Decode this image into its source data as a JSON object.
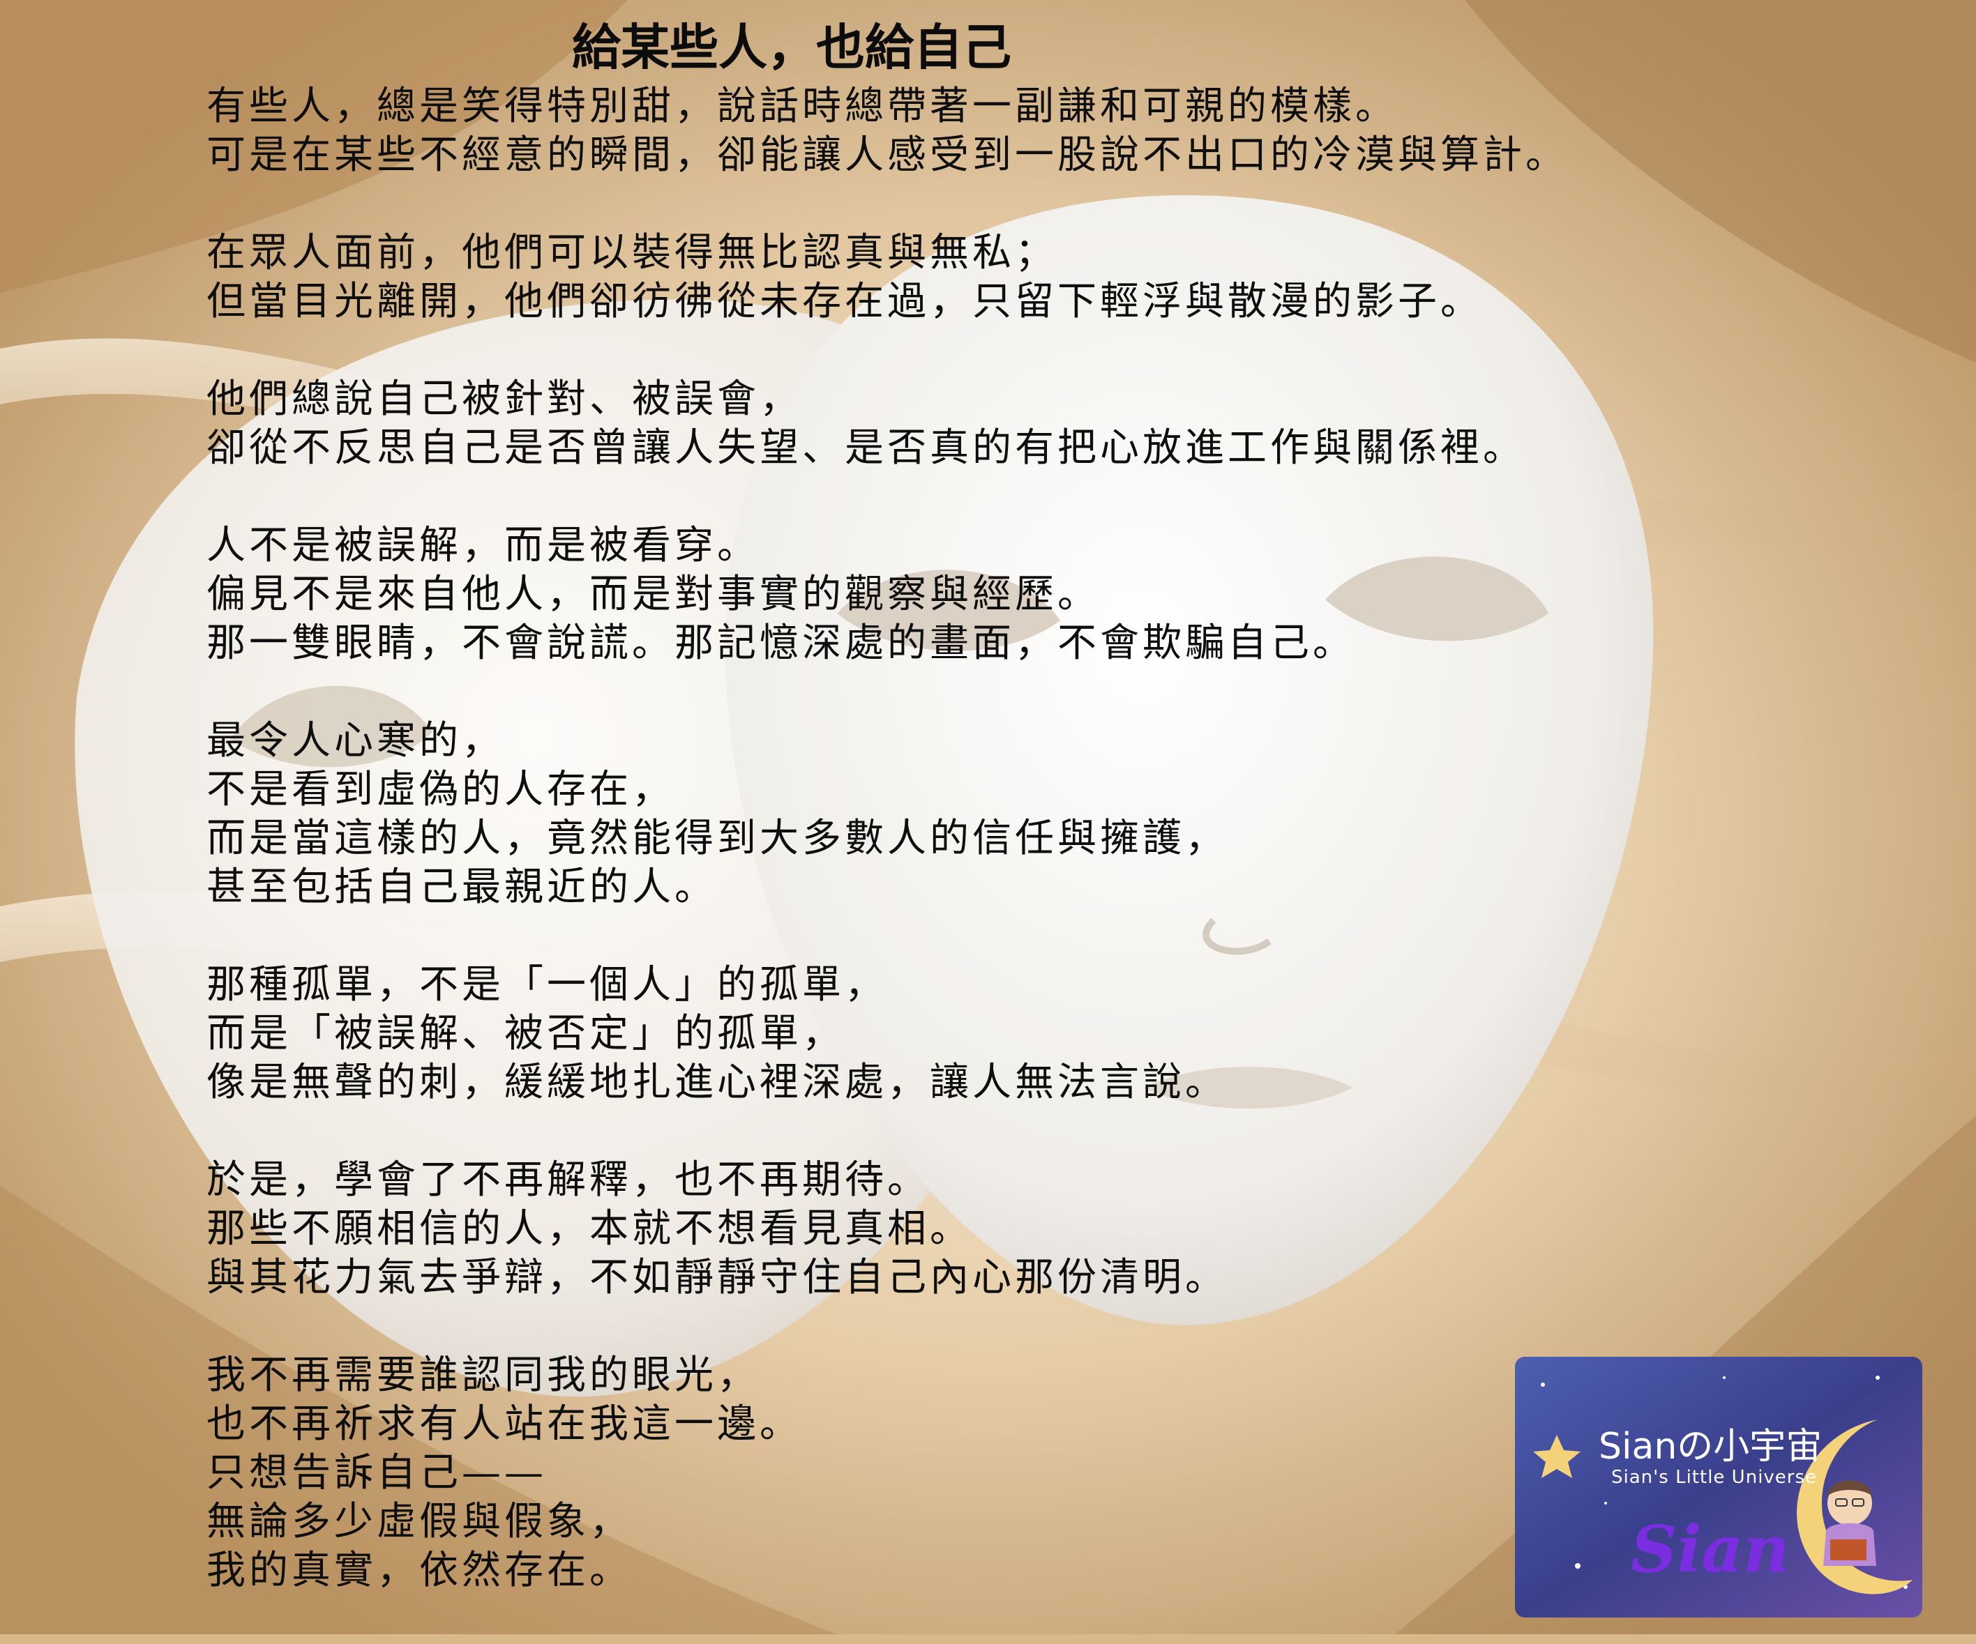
{
  "title": "給某些人，也給自己",
  "stanzas": [
    [
      "有些人，總是笑得特別甜，說話時總帶著一副謙和可親的模樣。",
      "可是在某些不經意的瞬間，卻能讓人感受到一股說不出口的冷漠與算計。"
    ],
    [
      "在眾人面前，他們可以裝得無比認真與無私；",
      "但當目光離開，他們卻彷彿從未存在過，只留下輕浮與散漫的影子。"
    ],
    [
      "他們總說自己被針對、被誤會，",
      "卻從不反思自己是否曾讓人失望、是否真的有把心放進工作與關係裡。"
    ],
    [
      "人不是被誤解，而是被看穿。",
      "偏見不是來自他人，而是對事實的觀察與經歷。",
      "那一雙眼睛，不會說謊。那記憶深處的畫面，不會欺騙自己。"
    ],
    [
      "最令人心寒的，",
      "不是看到虛偽的人存在，",
      "而是當這樣的人，竟然能得到大多數人的信任與擁護，",
      "甚至包括自己最親近的人。"
    ],
    [
      "那種孤單，不是「一個人」的孤單，",
      "而是「被誤解、被否定」的孤單，",
      "像是無聲的刺，緩緩地扎進心裡深處，讓人無法言說。"
    ],
    [
      "於是，學會了不再解釋，也不再期待。",
      "那些不願相信的人，本就不想看見真相。",
      "與其花力氣去爭辯，不如靜靜守住自己內心那份清明。"
    ],
    [
      "我不再需要誰認同我的眼光，",
      "也不再祈求有人站在我這一邊。",
      "只想告訴自己——",
      "無論多少虛假與假象，",
      "我的真實，依然存在。"
    ]
  ],
  "logo": {
    "title": "Sianの小宇宙",
    "subtitle": "Sian's Little Universe",
    "signature": "Sian"
  },
  "colors": {
    "satin_light": "#f3e3c8",
    "satin_dark": "#a77a45",
    "mask": "#f4f2ee",
    "logo_bg": "#3c3f8a",
    "signature": "#7a2ee0"
  },
  "icons": [
    "mask-illustration",
    "star-icon",
    "moon-icon",
    "reader-avatar-icon"
  ]
}
